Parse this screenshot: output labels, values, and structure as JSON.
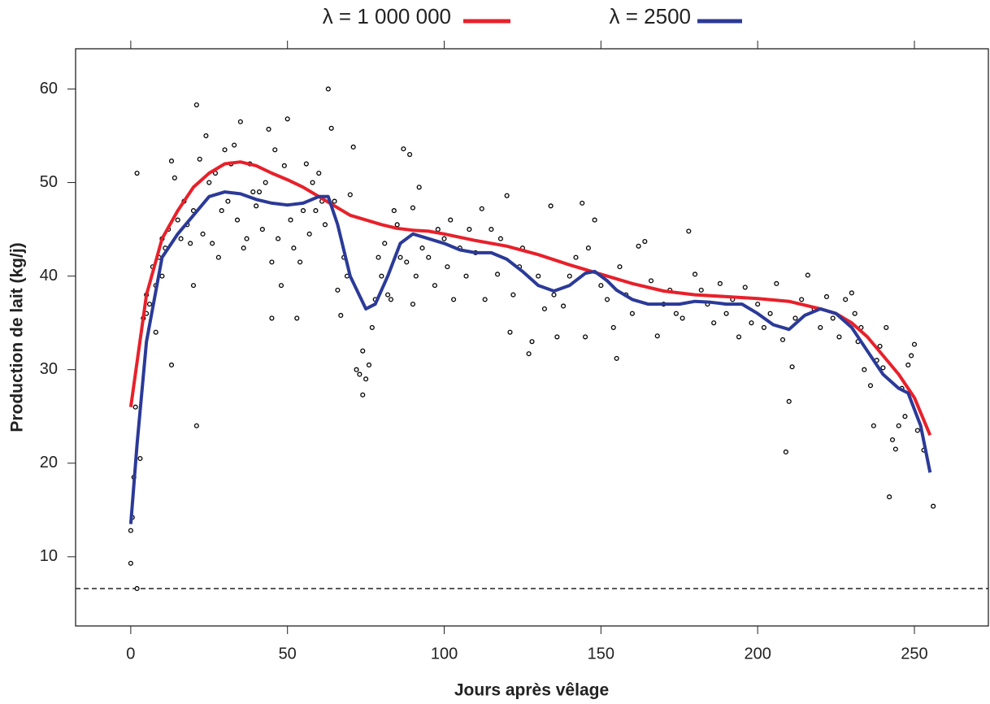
{
  "chart_data": {
    "type": "scatter",
    "xlabel": "Jours après vêlage",
    "ylabel": "Production de lait (kg/j)",
    "xlim": [
      -17.6,
      273.6
    ],
    "ylim": [
      2.6,
      64.3
    ],
    "xticks": [
      0,
      50,
      100,
      150,
      200,
      250
    ],
    "yticks": [
      10,
      20,
      30,
      40,
      50,
      60
    ],
    "hline": 6.6,
    "legend": "top",
    "points": {
      "color": "#000000",
      "x": [
        0,
        0,
        0.5,
        1,
        1.5,
        2,
        2,
        3,
        4,
        5,
        5,
        6,
        7,
        8,
        8,
        9,
        10,
        10,
        11,
        12,
        13,
        13,
        14,
        15,
        16,
        17,
        18,
        19,
        20,
        20,
        21,
        21,
        22,
        23,
        24,
        25,
        26,
        27,
        28,
        29,
        30,
        31,
        32,
        33,
        34,
        35,
        36,
        37,
        38,
        39,
        40,
        41,
        42,
        43,
        44,
        45,
        45,
        46,
        47,
        48,
        49,
        50,
        51,
        52,
        53,
        54,
        55,
        56,
        57,
        58,
        59,
        60,
        61,
        62,
        63,
        64,
        65,
        66,
        67,
        68,
        69,
        70,
        71,
        72,
        73,
        74,
        74,
        75,
        76,
        77,
        78,
        79,
        80,
        81,
        82,
        83,
        84,
        85,
        86,
        87,
        88,
        89,
        90,
        90,
        91,
        92,
        93,
        95,
        97,
        98,
        100,
        101,
        102,
        103,
        105,
        107,
        108,
        110,
        112,
        113,
        115,
        117,
        118,
        120,
        121,
        122,
        124,
        125,
        127,
        128,
        130,
        132,
        134,
        135,
        136,
        138,
        140,
        142,
        144,
        145,
        146,
        148,
        150,
        152,
        154,
        155,
        156,
        158,
        160,
        162,
        164,
        166,
        168,
        170,
        172,
        174,
        176,
        178,
        180,
        182,
        184,
        186,
        188,
        190,
        192,
        194,
        196,
        198,
        200,
        202,
        204,
        206,
        208,
        209,
        210,
        211,
        212,
        214,
        216,
        218,
        220,
        222,
        224,
        226,
        228,
        230,
        231,
        232,
        233,
        234,
        236,
        237,
        238,
        239,
        240,
        241,
        242,
        243,
        244,
        245,
        246,
        247,
        248,
        249,
        250,
        251,
        253,
        256
      ],
      "y": [
        9.3,
        12.8,
        14.2,
        18.5,
        26,
        6.6,
        51,
        20.5,
        35.5,
        36,
        38,
        37,
        41,
        34,
        39,
        42,
        40,
        44,
        43,
        45,
        30.5,
        52.3,
        50.5,
        46,
        44,
        48,
        45.5,
        43.5,
        39,
        47,
        24,
        58.3,
        52.5,
        44.5,
        55,
        50,
        43.5,
        51,
        42,
        47,
        53.5,
        48,
        52,
        54,
        46,
        56.5,
        43,
        44,
        52,
        49,
        47.5,
        49,
        45,
        50,
        55.7,
        41.5,
        35.5,
        53.5,
        44,
        39,
        51.8,
        56.8,
        46,
        43,
        35.5,
        41.5,
        47,
        52,
        44.5,
        50,
        47,
        51,
        48,
        45.5,
        60,
        55.8,
        48,
        38.5,
        35.8,
        42,
        40,
        48.7,
        53.8,
        30,
        29.5,
        27.3,
        32,
        29,
        30.5,
        34.5,
        37.5,
        42,
        40,
        43.5,
        38,
        37.5,
        47,
        45.5,
        42,
        53.6,
        41.5,
        53,
        47.3,
        37,
        40,
        49.5,
        43,
        42,
        39,
        45,
        44,
        41,
        46,
        37.5,
        43,
        40,
        45,
        42.5,
        47.2,
        37.5,
        45,
        40.2,
        44,
        48.6,
        34,
        38,
        41,
        43,
        31.7,
        33,
        40,
        36.5,
        47.5,
        38,
        33.5,
        36.8,
        40,
        42,
        47.8,
        33.5,
        43,
        46,
        39,
        37.5,
        34.5,
        31.2,
        41,
        38,
        36,
        43.2,
        43.7,
        39.5,
        33.6,
        37,
        38.5,
        36,
        35.5,
        44.8,
        40.2,
        38.5,
        37,
        35,
        39.2,
        36,
        37.5,
        33.5,
        38.8,
        35,
        37,
        34.5,
        36,
        39.2,
        33.2,
        21.2,
        26.6,
        30.3,
        35.5,
        37.5,
        40.1,
        36.5,
        34.5,
        37.8,
        35.5,
        33.5,
        37.5,
        38.2,
        36,
        33,
        34.5,
        30,
        28.3,
        24,
        31,
        32.5,
        30.2,
        34.5,
        16.4,
        22.5,
        21.5,
        24,
        28,
        25,
        30.5,
        31.5,
        32.7,
        23.5,
        21.4,
        15.4
      ]
    },
    "series": [
      {
        "name": "λ = 1 000 000",
        "color": "#e8202a",
        "x": [
          0,
          5,
          10,
          15,
          20,
          25,
          30,
          35,
          40,
          45,
          50,
          55,
          60,
          65,
          70,
          75,
          80,
          85,
          90,
          95,
          100,
          110,
          120,
          130,
          140,
          150,
          160,
          170,
          180,
          190,
          200,
          210,
          220,
          225,
          230,
          235,
          240,
          245,
          250,
          255
        ],
        "values": [
          26,
          38,
          44,
          47,
          49.5,
          51,
          52,
          52.2,
          51.8,
          51,
          50.3,
          49.5,
          48.5,
          47.5,
          46.5,
          46,
          45.5,
          45.1,
          44.9,
          44.8,
          44.5,
          43.8,
          43.2,
          42.3,
          41.2,
          40.2,
          39.2,
          38.4,
          38,
          37.8,
          37.6,
          37.3,
          36.5,
          36,
          35,
          33.5,
          31.5,
          29.5,
          27,
          23
        ]
      },
      {
        "name": "λ = 2500",
        "color": "#2b3a98",
        "x": [
          0,
          2,
          5,
          10,
          15,
          20,
          25,
          30,
          35,
          40,
          45,
          50,
          55,
          60,
          63,
          66,
          70,
          75,
          78,
          82,
          86,
          90,
          95,
          100,
          105,
          110,
          115,
          120,
          125,
          130,
          135,
          140,
          145,
          148,
          152,
          155,
          160,
          165,
          170,
          175,
          180,
          185,
          190,
          195,
          200,
          205,
          210,
          215,
          220,
          225,
          230,
          235,
          240,
          245,
          248,
          252,
          255
        ],
        "values": [
          13.5,
          22,
          33,
          42,
          44.5,
          46.5,
          48.5,
          49,
          48.8,
          48.2,
          47.8,
          47.6,
          47.8,
          48.5,
          48.5,
          45.5,
          40,
          36.5,
          37,
          40,
          43.5,
          44.5,
          44,
          43.5,
          42.8,
          42.5,
          42.5,
          41.8,
          40.5,
          39,
          38.4,
          39,
          40.3,
          40.5,
          39.5,
          38.5,
          37.5,
          37,
          37,
          37,
          37.3,
          37.2,
          37,
          37,
          36,
          34.8,
          34.3,
          35.8,
          36.5,
          36,
          34.5,
          32,
          29.5,
          28,
          27.5,
          24,
          19
        ]
      }
    ]
  }
}
